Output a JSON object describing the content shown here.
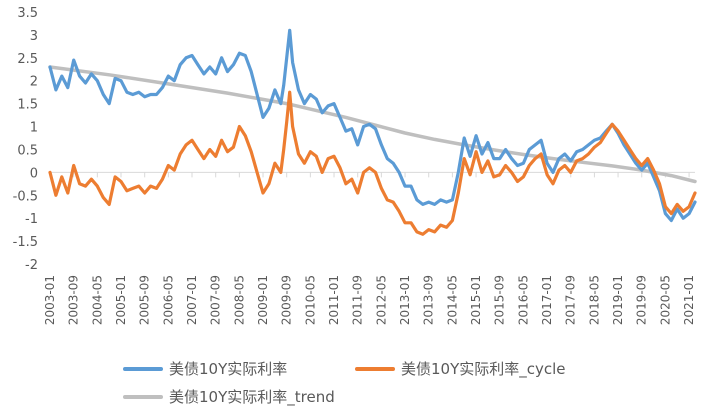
{
  "chart_data": {
    "type": "line",
    "title": "",
    "xlabel": "",
    "ylabel": "",
    "ylim": [
      -2,
      3.5
    ],
    "y_ticks": [
      3.5,
      3,
      2.5,
      2,
      1.5,
      1,
      0.5,
      0,
      -0.5,
      -1,
      -1.5,
      -2
    ],
    "x_tick_labels": [
      "2003-01",
      "2003-09",
      "2004-05",
      "2005-01",
      "2005-09",
      "2006-05",
      "2007-01",
      "2007-09",
      "2008-05",
      "2009-01",
      "2009-09",
      "2010-05",
      "2011-01",
      "2011-09",
      "2012-05",
      "2013-01",
      "2013-09",
      "2014-05",
      "2015-01",
      "2015-09",
      "2016-05",
      "2017-01",
      "2017-09",
      "2018-05",
      "2019-01",
      "2019-09",
      "2020-05",
      "2021-01"
    ],
    "x_start": "2003-01",
    "x_end": "2021-04",
    "legend_position": "bottom",
    "series": [
      {
        "name": "美债10Y实际利率",
        "color": "#5B9BD5",
        "points": [
          [
            0,
            2.3
          ],
          [
            2,
            1.8
          ],
          [
            4,
            2.1
          ],
          [
            6,
            1.85
          ],
          [
            8,
            2.45
          ],
          [
            10,
            2.1
          ],
          [
            12,
            1.95
          ],
          [
            14,
            2.15
          ],
          [
            16,
            2.0
          ],
          [
            18,
            1.7
          ],
          [
            20,
            1.5
          ],
          [
            22,
            2.05
          ],
          [
            24,
            2.0
          ],
          [
            26,
            1.75
          ],
          [
            28,
            1.7
          ],
          [
            30,
            1.75
          ],
          [
            32,
            1.65
          ],
          [
            34,
            1.7
          ],
          [
            36,
            1.7
          ],
          [
            38,
            1.85
          ],
          [
            40,
            2.1
          ],
          [
            42,
            2.0
          ],
          [
            44,
            2.35
          ],
          [
            46,
            2.5
          ],
          [
            48,
            2.55
          ],
          [
            50,
            2.35
          ],
          [
            52,
            2.15
          ],
          [
            54,
            2.3
          ],
          [
            56,
            2.15
          ],
          [
            58,
            2.5
          ],
          [
            60,
            2.2
          ],
          [
            62,
            2.35
          ],
          [
            64,
            2.6
          ],
          [
            66,
            2.55
          ],
          [
            68,
            2.2
          ],
          [
            70,
            1.7
          ],
          [
            72,
            1.2
          ],
          [
            74,
            1.4
          ],
          [
            76,
            1.8
          ],
          [
            78,
            1.5
          ],
          [
            79,
            1.9
          ],
          [
            80,
            2.5
          ],
          [
            81,
            3.1
          ],
          [
            82,
            2.4
          ],
          [
            84,
            1.8
          ],
          [
            86,
            1.5
          ],
          [
            88,
            1.7
          ],
          [
            90,
            1.6
          ],
          [
            92,
            1.3
          ],
          [
            94,
            1.45
          ],
          [
            96,
            1.5
          ],
          [
            98,
            1.2
          ],
          [
            100,
            0.9
          ],
          [
            102,
            0.95
          ],
          [
            104,
            0.6
          ],
          [
            106,
            1.0
          ],
          [
            108,
            1.05
          ],
          [
            110,
            0.95
          ],
          [
            112,
            0.6
          ],
          [
            114,
            0.3
          ],
          [
            116,
            0.2
          ],
          [
            118,
            0.0
          ],
          [
            120,
            -0.3
          ],
          [
            122,
            -0.3
          ],
          [
            124,
            -0.6
          ],
          [
            126,
            -0.7
          ],
          [
            128,
            -0.65
          ],
          [
            130,
            -0.7
          ],
          [
            132,
            -0.6
          ],
          [
            134,
            -0.65
          ],
          [
            136,
            -0.6
          ],
          [
            138,
            0.0
          ],
          [
            140,
            0.75
          ],
          [
            142,
            0.35
          ],
          [
            144,
            0.8
          ],
          [
            146,
            0.4
          ],
          [
            148,
            0.65
          ],
          [
            150,
            0.3
          ],
          [
            152,
            0.3
          ],
          [
            154,
            0.5
          ],
          [
            156,
            0.3
          ],
          [
            158,
            0.15
          ],
          [
            160,
            0.2
          ],
          [
            162,
            0.5
          ],
          [
            164,
            0.6
          ],
          [
            166,
            0.7
          ],
          [
            168,
            0.2
          ],
          [
            170,
            0.0
          ],
          [
            172,
            0.3
          ],
          [
            174,
            0.4
          ],
          [
            176,
            0.25
          ],
          [
            178,
            0.45
          ],
          [
            180,
            0.5
          ],
          [
            182,
            0.6
          ],
          [
            184,
            0.7
          ],
          [
            186,
            0.75
          ],
          [
            188,
            0.9
          ],
          [
            190,
            1.05
          ],
          [
            192,
            0.85
          ],
          [
            194,
            0.6
          ],
          [
            196,
            0.4
          ],
          [
            198,
            0.2
          ],
          [
            200,
            0.05
          ],
          [
            202,
            0.2
          ],
          [
            204,
            -0.1
          ],
          [
            206,
            -0.4
          ],
          [
            208,
            -0.9
          ],
          [
            210,
            -1.05
          ],
          [
            212,
            -0.8
          ],
          [
            214,
            -1.0
          ],
          [
            216,
            -0.9
          ],
          [
            218,
            -0.65
          ]
        ]
      },
      {
        "name": "美债10Y实际利率_cycle",
        "color": "#ED7D31",
        "points": [
          [
            0,
            0.0
          ],
          [
            2,
            -0.5
          ],
          [
            4,
            -0.1
          ],
          [
            6,
            -0.45
          ],
          [
            8,
            0.15
          ],
          [
            10,
            -0.25
          ],
          [
            12,
            -0.3
          ],
          [
            14,
            -0.15
          ],
          [
            16,
            -0.3
          ],
          [
            18,
            -0.55
          ],
          [
            20,
            -0.7
          ],
          [
            22,
            -0.1
          ],
          [
            24,
            -0.2
          ],
          [
            26,
            -0.4
          ],
          [
            28,
            -0.35
          ],
          [
            30,
            -0.3
          ],
          [
            32,
            -0.45
          ],
          [
            34,
            -0.3
          ],
          [
            36,
            -0.35
          ],
          [
            38,
            -0.15
          ],
          [
            40,
            0.15
          ],
          [
            42,
            0.05
          ],
          [
            44,
            0.4
          ],
          [
            46,
            0.6
          ],
          [
            48,
            0.7
          ],
          [
            50,
            0.5
          ],
          [
            52,
            0.3
          ],
          [
            54,
            0.5
          ],
          [
            56,
            0.35
          ],
          [
            58,
            0.7
          ],
          [
            60,
            0.45
          ],
          [
            62,
            0.55
          ],
          [
            64,
            1.0
          ],
          [
            66,
            0.8
          ],
          [
            68,
            0.45
          ],
          [
            70,
            0.0
          ],
          [
            72,
            -0.45
          ],
          [
            74,
            -0.25
          ],
          [
            76,
            0.2
          ],
          [
            78,
            0.0
          ],
          [
            79,
            0.5
          ],
          [
            80,
            1.1
          ],
          [
            81,
            1.75
          ],
          [
            82,
            1.0
          ],
          [
            84,
            0.4
          ],
          [
            86,
            0.2
          ],
          [
            88,
            0.45
          ],
          [
            90,
            0.35
          ],
          [
            92,
            0.0
          ],
          [
            94,
            0.3
          ],
          [
            96,
            0.35
          ],
          [
            98,
            0.1
          ],
          [
            100,
            -0.25
          ],
          [
            102,
            -0.15
          ],
          [
            104,
            -0.45
          ],
          [
            106,
            0.0
          ],
          [
            108,
            0.1
          ],
          [
            110,
            0.0
          ],
          [
            112,
            -0.35
          ],
          [
            114,
            -0.6
          ],
          [
            116,
            -0.65
          ],
          [
            118,
            -0.85
          ],
          [
            120,
            -1.1
          ],
          [
            122,
            -1.1
          ],
          [
            124,
            -1.3
          ],
          [
            126,
            -1.35
          ],
          [
            128,
            -1.25
          ],
          [
            130,
            -1.3
          ],
          [
            132,
            -1.15
          ],
          [
            134,
            -1.2
          ],
          [
            136,
            -1.05
          ],
          [
            138,
            -0.45
          ],
          [
            140,
            0.3
          ],
          [
            142,
            -0.05
          ],
          [
            144,
            0.45
          ],
          [
            146,
            0.0
          ],
          [
            148,
            0.25
          ],
          [
            150,
            -0.1
          ],
          [
            152,
            -0.05
          ],
          [
            154,
            0.15
          ],
          [
            156,
            0.0
          ],
          [
            158,
            -0.2
          ],
          [
            160,
            -0.1
          ],
          [
            162,
            0.15
          ],
          [
            164,
            0.3
          ],
          [
            166,
            0.4
          ],
          [
            168,
            -0.05
          ],
          [
            170,
            -0.25
          ],
          [
            172,
            0.05
          ],
          [
            174,
            0.15
          ],
          [
            176,
            0.0
          ],
          [
            178,
            0.25
          ],
          [
            180,
            0.3
          ],
          [
            182,
            0.4
          ],
          [
            184,
            0.55
          ],
          [
            186,
            0.65
          ],
          [
            188,
            0.85
          ],
          [
            190,
            1.05
          ],
          [
            192,
            0.9
          ],
          [
            194,
            0.7
          ],
          [
            196,
            0.5
          ],
          [
            198,
            0.3
          ],
          [
            200,
            0.15
          ],
          [
            202,
            0.3
          ],
          [
            204,
            0.05
          ],
          [
            206,
            -0.25
          ],
          [
            208,
            -0.75
          ],
          [
            210,
            -0.9
          ],
          [
            212,
            -0.7
          ],
          [
            214,
            -0.85
          ],
          [
            216,
            -0.75
          ],
          [
            218,
            -0.45
          ]
        ]
      },
      {
        "name": "美债10Y实际利率_trend",
        "color": "#BFBFBF",
        "points": [
          [
            0,
            2.3
          ],
          [
            20,
            2.13
          ],
          [
            40,
            1.93
          ],
          [
            60,
            1.73
          ],
          [
            80,
            1.5
          ],
          [
            100,
            1.2
          ],
          [
            110,
            1.03
          ],
          [
            120,
            0.86
          ],
          [
            130,
            0.72
          ],
          [
            140,
            0.6
          ],
          [
            150,
            0.49
          ],
          [
            160,
            0.39
          ],
          [
            170,
            0.3
          ],
          [
            180,
            0.22
          ],
          [
            190,
            0.14
          ],
          [
            200,
            0.05
          ],
          [
            210,
            -0.07
          ],
          [
            218,
            -0.2
          ]
        ]
      }
    ]
  }
}
